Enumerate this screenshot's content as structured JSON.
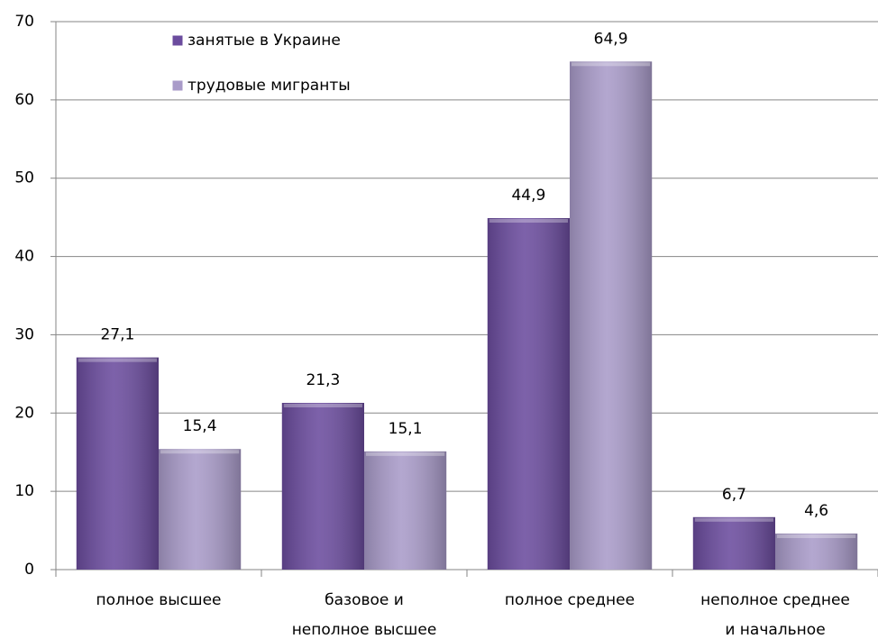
{
  "chart_data": {
    "type": "bar",
    "categories": [
      "полное высшее",
      "базовое и\nнеполное высшее",
      "полное среднее",
      "неполное среднее\nи начальное"
    ],
    "series": [
      {
        "name": "занятые в Украине",
        "color": "#6b4c9e",
        "values": [
          27.1,
          21.3,
          44.9,
          6.7
        ],
        "value_labels": [
          "27,1",
          "21,3",
          "44,9",
          "6,7"
        ]
      },
      {
        "name": "трудовые мигранты",
        "color": "#a99bc9",
        "values": [
          15.4,
          15.1,
          64.9,
          4.6
        ],
        "value_labels": [
          "15,4",
          "15,1",
          "64,9",
          "4,6"
        ]
      }
    ],
    "ylim": [
      0,
      70
    ],
    "yticks": [
      0,
      10,
      20,
      30,
      40,
      50,
      60,
      70
    ],
    "grid": true,
    "legend": "top-left"
  }
}
